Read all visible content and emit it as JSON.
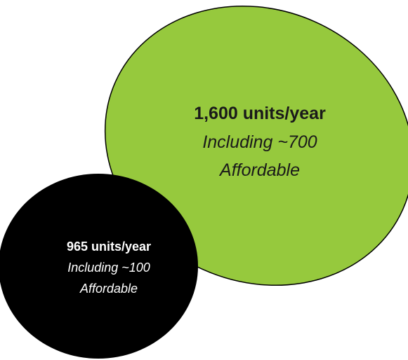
{
  "colors": {
    "green_fill": "#96C93D",
    "black_fill": "#000000",
    "outline": "#000000",
    "dark_text": "#1a1a1a",
    "light_text": "#ffffff"
  },
  "large_circle": {
    "headline": "1,600 units/year",
    "line2": "Including ~700",
    "line3": "Affordable"
  },
  "small_circle": {
    "headline": "965 units/year",
    "line2": "Including ~100",
    "line3": "Affordable"
  }
}
